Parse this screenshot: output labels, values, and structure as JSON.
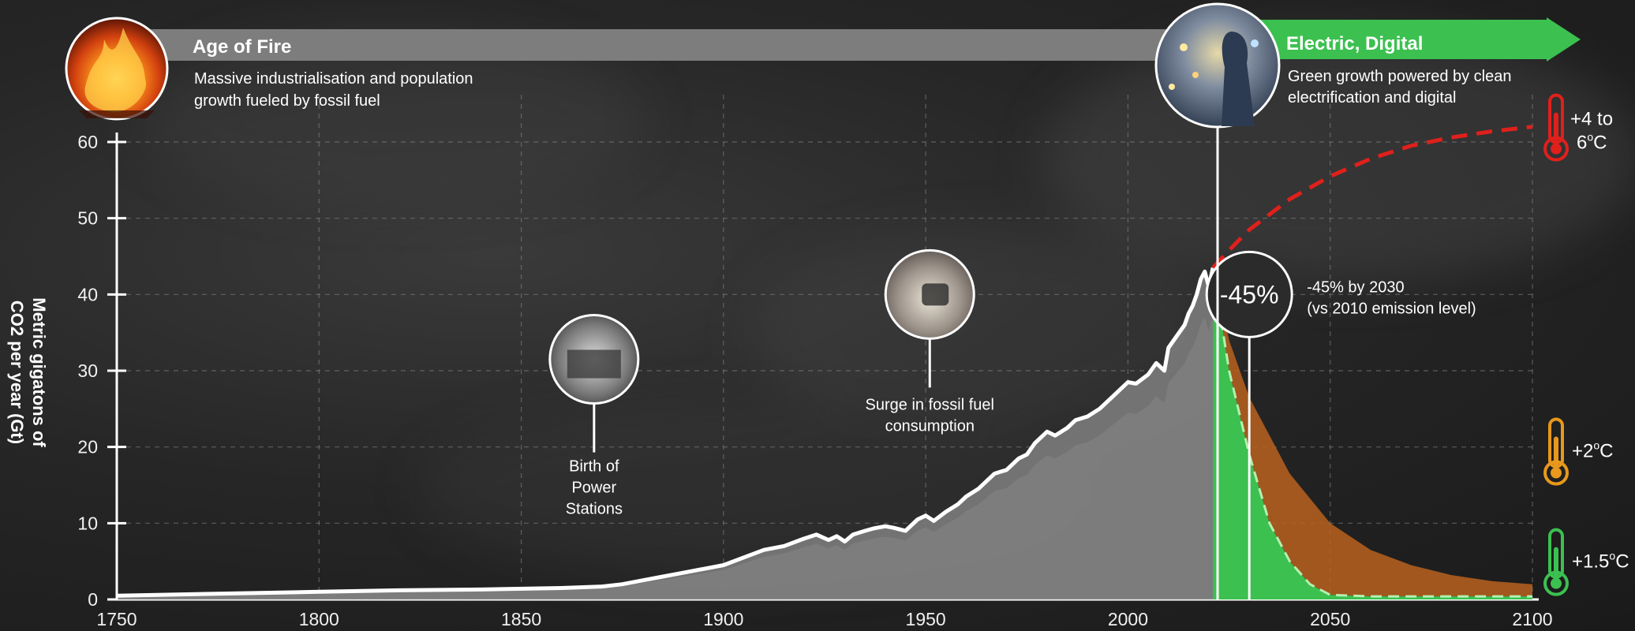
{
  "chart_data": {
    "type": "area",
    "ylabel_line1": "Metric gigatons of",
    "ylabel_line2": "CO2  per year (Gt)",
    "xlim": [
      1750,
      2100
    ],
    "ylim": [
      0,
      60
    ],
    "x_ticks": [
      1750,
      1800,
      1850,
      1900,
      1950,
      2000,
      2050,
      2100
    ],
    "y_ticks": [
      0,
      10,
      20,
      30,
      40,
      50,
      60
    ],
    "grid": true,
    "series": [
      {
        "name": "",
        "style": "solid-white-line-with-grey-area",
        "x": [
          1750,
          1760,
          1780,
          1800,
          1820,
          1840,
          1860,
          1870,
          1875,
          1880,
          1885,
          1890,
          1900,
          1905,
          1910,
          1915,
          1920,
          1923,
          1926,
          1928,
          1930,
          1932,
          1935,
          1937,
          1940,
          1942,
          1945,
          1948,
          1950,
          1952,
          1955,
          1958,
          1960,
          1963,
          1965,
          1967,
          1970,
          1973,
          1975,
          1977,
          1980,
          1982,
          1985,
          1987,
          1990,
          1993,
          1995,
          1998,
          2000,
          2002,
          2005,
          2007,
          2009,
          2010,
          2012,
          2014,
          2015,
          2016,
          2017,
          2018,
          2019,
          2020,
          2021
        ],
        "y": [
          0.5,
          0.6,
          0.8,
          1.0,
          1.2,
          1.3,
          1.5,
          1.7,
          2.0,
          2.5,
          3.0,
          3.5,
          4.5,
          5.5,
          6.5,
          7.0,
          8.0,
          8.5,
          7.8,
          8.3,
          7.6,
          8.5,
          9.0,
          9.3,
          9.6,
          9.4,
          9.0,
          10.5,
          11.0,
          10.3,
          11.5,
          12.5,
          13.5,
          14.5,
          15.5,
          16.5,
          17.0,
          18.5,
          19.0,
          20.5,
          22.0,
          21.5,
          22.5,
          23.5,
          24.0,
          25.0,
          26.0,
          27.5,
          28.5,
          28.3,
          29.5,
          31.0,
          30.0,
          33.0,
          34.5,
          36.0,
          37.5,
          38.5,
          40.0,
          42.0,
          43.0,
          41.0,
          43.5
        ]
      },
      {
        "name": "",
        "style": "dashed-red",
        "x": [
          2021,
          2025,
          2030,
          2040,
          2050,
          2060,
          2070,
          2080,
          2090,
          2100
        ],
        "y": [
          43.5,
          45.8,
          48.5,
          52.5,
          55.5,
          57.8,
          59.5,
          60.6,
          61.4,
          62.0
        ]
      },
      {
        "name": "",
        "style": "orange-fill",
        "x": [
          2021,
          2025,
          2030,
          2040,
          2050,
          2060,
          2070,
          2080,
          2090,
          2100
        ],
        "y": [
          43.5,
          34.0,
          26.5,
          16.5,
          10.0,
          6.5,
          4.5,
          3.2,
          2.4,
          2.0
        ]
      },
      {
        "name": "",
        "style": "green-fill-dashed-light-green",
        "x": [
          2021,
          2025,
          2030,
          2035,
          2040,
          2045,
          2050,
          2060,
          2080,
          2100
        ],
        "y": [
          43.5,
          30.0,
          19.0,
          10.0,
          5.0,
          2.0,
          0.6,
          0.4,
          0.4,
          0.4
        ]
      }
    ],
    "annotations": [
      {
        "year": 1868,
        "value": 31.5,
        "label_lines": [
          "Birth of",
          "Power",
          "Stations"
        ]
      },
      {
        "year": 1951,
        "value": 40.0,
        "label_lines": [
          "Surge in fossil fuel",
          "consumption"
        ]
      },
      {
        "year": 2030,
        "value": 40.0,
        "circle_text": "-45%",
        "label_lines": [
          "-45% by 2030",
          "(vs 2010 emission level)"
        ]
      }
    ],
    "outcomes": [
      {
        "value": 62.0,
        "lines": [
          "+4 to",
          "6",
          "C"
        ],
        "color": "#e0201b"
      },
      {
        "value": 19.5,
        "lines": [
          "+2",
          "C"
        ],
        "color": "#e8981c"
      },
      {
        "value": 5.0,
        "lines": [
          "+1.5",
          "C"
        ],
        "color": "#3cc050"
      }
    ]
  },
  "banners": {
    "left": {
      "title": "Age of Fire",
      "line1": "Massive industrialisation and population",
      "line2": "growth fueled by fossil fuel"
    },
    "right": {
      "title": "Electric, Digital",
      "line1": "Green growth powered by clean",
      "line2": "electrification and digital"
    }
  },
  "colors": {
    "grey_bar": "#7d7d7d",
    "green": "#3cc050",
    "orange": "#b8621e",
    "area": "#7a7a7a",
    "red": "#e0201b",
    "light_green": "#b6f0b0"
  }
}
